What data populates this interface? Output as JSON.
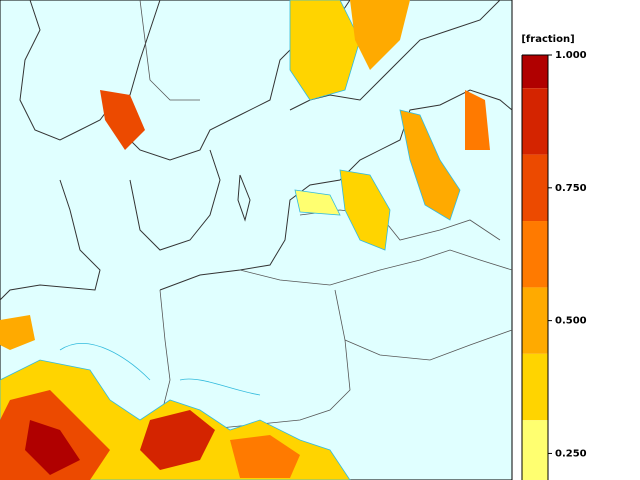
{
  "chart_data": {
    "type": "colorbar",
    "unit_label": "[fraction]",
    "bounds": [
      1,
      0.9375,
      0.8125,
      0.6875,
      0.5625,
      0.4375,
      0.3125,
      0.1875
    ],
    "colors": [
      "#b00000",
      "#d42400",
      "#ec4a00",
      "#ff7a00",
      "#ffaa00",
      "#ffd400",
      "#ffff70"
    ],
    "lim": [
      0.2,
      1
    ],
    "ticks": [
      {
        "value": 1,
        "label": "1.000"
      },
      {
        "value": 0.75,
        "label": "0.750"
      },
      {
        "value": 0.5,
        "label": "0.500"
      },
      {
        "value": 0.25,
        "label": "0.250"
      }
    ]
  }
}
